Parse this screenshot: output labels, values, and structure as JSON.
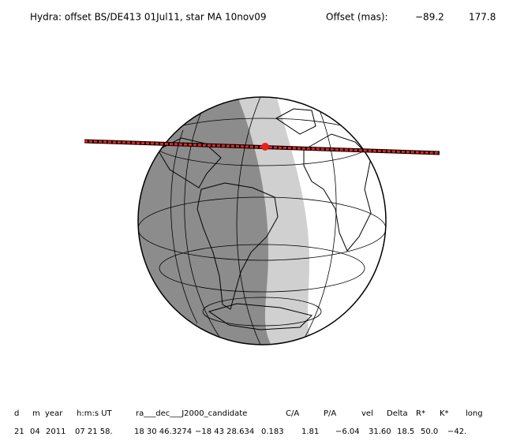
{
  "header": {
    "title": "Hydra: offset BS/DE413 01Jul11, star MA 10nov09",
    "offset_label": "Offset (mas):",
    "offset_x": "−89.2",
    "offset_y": "177.8"
  },
  "table": {
    "columns": [
      "d",
      "m",
      "year",
      "h:m:s UT",
      "ra___dec___J2000_candidate",
      "C/A",
      "P/A",
      "vel",
      "Delta",
      "R*",
      "K*",
      "long"
    ],
    "rows": [
      [
        "21",
        "04",
        "2011",
        "07 21 58.",
        "18 30 46.3274",
        "−18 43 28.634",
        "0.183",
        "1.81",
        "−6.04",
        "31.60",
        "18.5",
        "50.0",
        "−42."
      ]
    ]
  }
}
